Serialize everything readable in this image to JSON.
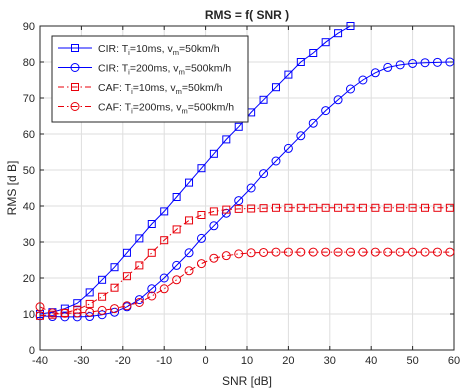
{
  "chart_data": {
    "type": "line",
    "title": "RMS = f( SNR )",
    "xlabel": "SNR [dB]",
    "ylabel": "RMS [d B]",
    "xlim": [
      -40,
      60
    ],
    "ylim": [
      0,
      90
    ],
    "xticks": [
      -40,
      -30,
      -20,
      -10,
      0,
      10,
      20,
      30,
      40,
      50,
      60
    ],
    "yticks": [
      0,
      10,
      20,
      30,
      40,
      50,
      60,
      70,
      80,
      90
    ],
    "grid": true,
    "legend_position": "top-left",
    "x": [
      -40,
      -37,
      -34,
      -31,
      -28,
      -25,
      -22,
      -19,
      -16,
      -13,
      -10,
      -7,
      -4,
      -1,
      2,
      5,
      8,
      11,
      14,
      17,
      20,
      23,
      26,
      29,
      32,
      35,
      38,
      41,
      44,
      47,
      50,
      53,
      56,
      59
    ],
    "series": [
      {
        "name_parts": [
          "CIR: T",
          "i",
          "=10ms, v",
          "m",
          "=50km/h"
        ],
        "color": "#0000ff",
        "dash": "solid",
        "marker": "square",
        "values": [
          10,
          10.5,
          11.5,
          13,
          16,
          19.5,
          23,
          27,
          31,
          35,
          38.5,
          42.5,
          46.5,
          50.5,
          54.5,
          58.5,
          62,
          66,
          69.5,
          73,
          76.5,
          80,
          82.5,
          85.5,
          88,
          90,
          92,
          93,
          93.3,
          93.5,
          93.7,
          93.8,
          93.9,
          94
        ]
      },
      {
        "name_parts": [
          "CIR: T",
          "i",
          "=200ms, v",
          "m",
          "=500km/h"
        ],
        "color": "#0000ff",
        "dash": "solid",
        "marker": "circle",
        "values": [
          9.5,
          9.3,
          9.2,
          9.2,
          9.3,
          9.8,
          10.5,
          12,
          14,
          17,
          20,
          23.5,
          27,
          31,
          34.5,
          38,
          41.5,
          45,
          49,
          52.5,
          56,
          59.5,
          63,
          66.5,
          69.5,
          72.5,
          75,
          77,
          78.5,
          79.2,
          79.6,
          79.8,
          79.9,
          80
        ]
      },
      {
        "name_parts": [
          "CAF: T",
          "i",
          "=10ms, v",
          "m",
          "=50km/h"
        ],
        "color": "#e8000b",
        "dash": "dashdot",
        "marker": "square",
        "values": [
          9.5,
          9.8,
          10.3,
          11.2,
          12.8,
          14.8,
          17.3,
          20.5,
          23.5,
          27,
          30.5,
          33.5,
          36,
          37.5,
          38.5,
          39,
          39.2,
          39.3,
          39.4,
          39.5,
          39.5,
          39.5,
          39.5,
          39.5,
          39.5,
          39.5,
          39.5,
          39.5,
          39.5,
          39.5,
          39.5,
          39.5,
          39.5,
          39.5
        ]
      },
      {
        "name_parts": [
          "CAF: T",
          "i",
          "=200ms, v",
          "m",
          "=500km/h"
        ],
        "color": "#e8000b",
        "dash": "dashdot",
        "marker": "circle",
        "values": [
          12,
          10.3,
          10.2,
          10.3,
          10.5,
          11,
          11.5,
          12.3,
          13.2,
          15,
          17,
          19.5,
          22,
          24,
          25.5,
          26.2,
          26.7,
          27,
          27.1,
          27.2,
          27.2,
          27.2,
          27.2,
          27.2,
          27.2,
          27.2,
          27.2,
          27.2,
          27.2,
          27.2,
          27.2,
          27.2,
          27.2,
          27.2
        ]
      }
    ]
  }
}
